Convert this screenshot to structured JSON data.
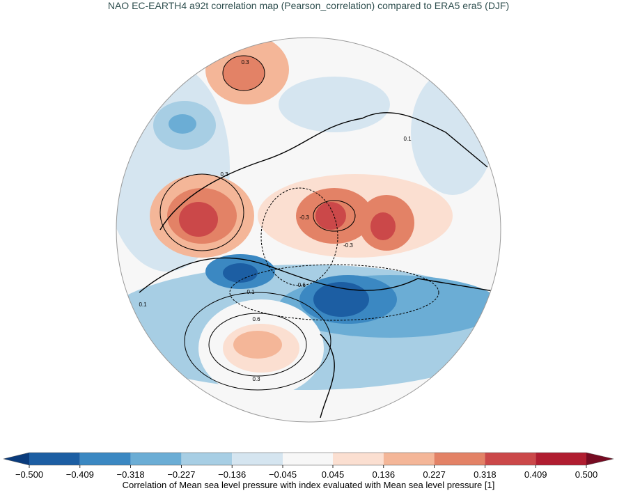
{
  "title": "NAO EC-EARTH4 a92t correlation map (Pearson_correlation) compared to ERA5 era5 (DJF)",
  "colorbar": {
    "label": "Correlation of Mean sea level pressure with index evaluated with Mean sea level pressure [1]",
    "ticks": [
      {
        "value": -0.5,
        "label": "−0.500"
      },
      {
        "value": -0.409,
        "label": "−0.409"
      },
      {
        "value": -0.318,
        "label": "−0.318"
      },
      {
        "value": -0.227,
        "label": "−0.227"
      },
      {
        "value": -0.136,
        "label": "−0.136"
      },
      {
        "value": -0.045,
        "label": "−0.045"
      },
      {
        "value": 0.045,
        "label": "0.045"
      },
      {
        "value": 0.136,
        "label": "0.136"
      },
      {
        "value": 0.227,
        "label": "0.227"
      },
      {
        "value": 0.318,
        "label": "0.318"
      },
      {
        "value": 0.409,
        "label": "0.409"
      },
      {
        "value": 0.5,
        "label": "0.500"
      }
    ],
    "colors": [
      "#1c5ea3",
      "#3b88c2",
      "#6badd5",
      "#a7cee4",
      "#d5e5f0",
      "#f7f7f7",
      "#fbdfd1",
      "#f4b698",
      "#e38266",
      "#cb4849",
      "#b01d30"
    ],
    "under_color": "#0a3b7c",
    "over_color": "#760b22"
  },
  "contour_labels": [
    "0.3",
    "0.3",
    "-0.3",
    "-0.3",
    "-0.6",
    "0.1",
    "0.6",
    "0.3",
    "0.1",
    "0.1"
  ]
}
